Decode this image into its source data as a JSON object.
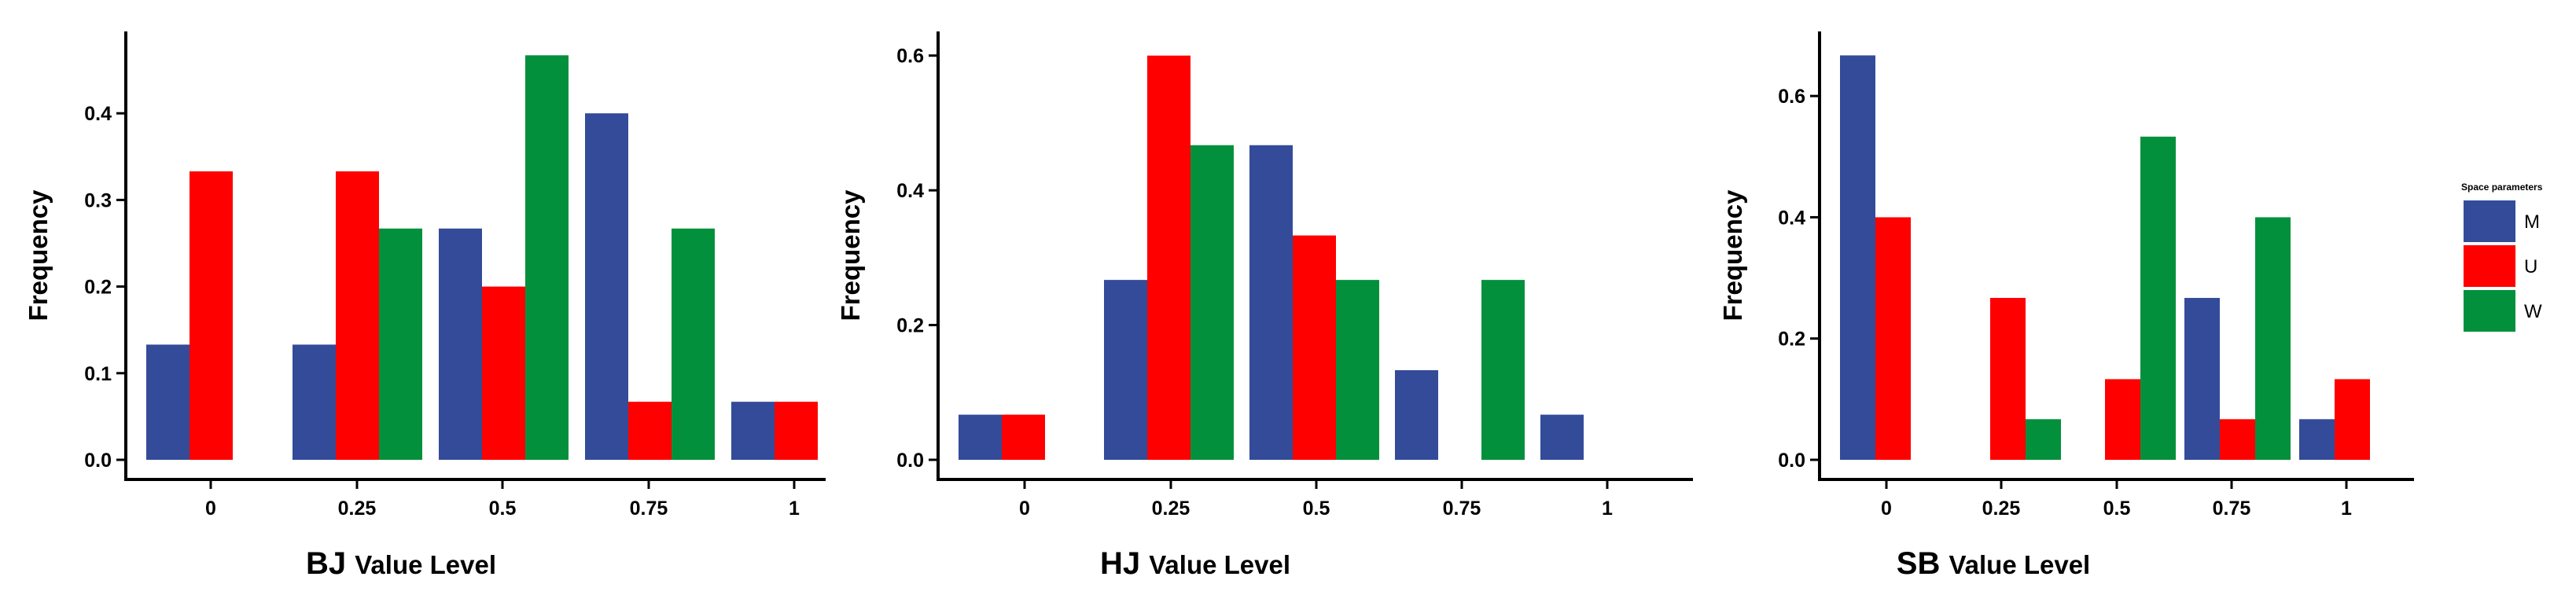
{
  "colors": {
    "M": "#334b99",
    "U": "#fe0000",
    "W": "#02903c"
  },
  "legend": {
    "title": "Space parameters",
    "items": [
      {
        "key": "M",
        "label": "M"
      },
      {
        "key": "U",
        "label": "U"
      },
      {
        "key": "W",
        "label": "W"
      }
    ]
  },
  "chart_data": [
    {
      "type": "bar",
      "xlabel_prefix": "BJ",
      "xlabel_suffix": "Value Level",
      "ylabel": "Frequency",
      "categories": [
        "0",
        "0.25",
        "0.5",
        "0.75",
        "1"
      ],
      "ylim": [
        0,
        0.49
      ],
      "yticks": [
        0.0,
        0.1,
        0.2,
        0.3,
        0.4
      ],
      "series": [
        {
          "name": "M",
          "values": [
            0.133,
            0.133,
            0.267,
            0.4,
            0.067
          ]
        },
        {
          "name": "U",
          "values": [
            0.333,
            0.333,
            0.2,
            0.067,
            0.067
          ]
        },
        {
          "name": "W",
          "values": [
            0,
            0.267,
            0.467,
            0.267,
            0
          ]
        }
      ]
    },
    {
      "type": "bar",
      "xlabel_prefix": "HJ",
      "xlabel_suffix": "Value Level",
      "ylabel": "Frequency",
      "categories": [
        "0",
        "0.25",
        "0.5",
        "0.75",
        "1"
      ],
      "ylim": [
        0,
        0.63
      ],
      "yticks": [
        0.0,
        0.2,
        0.4,
        0.6
      ],
      "series": [
        {
          "name": "M",
          "values": [
            0.067,
            0.267,
            0.467,
            0.133,
            0.067
          ]
        },
        {
          "name": "U",
          "values": [
            0.067,
            0.6,
            0.333,
            0,
            0
          ]
        },
        {
          "name": "W",
          "values": [
            0,
            0.467,
            0.267,
            0.267,
            0
          ]
        }
      ]
    },
    {
      "type": "bar",
      "xlabel_prefix": "SB",
      "xlabel_suffix": "Value Level",
      "ylabel": "Frequency",
      "categories": [
        "0",
        "0.25",
        "0.5",
        "0.75",
        "1"
      ],
      "ylim": [
        0,
        0.7
      ],
      "yticks": [
        0.0,
        0.2,
        0.4,
        0.6
      ],
      "series": [
        {
          "name": "M",
          "values": [
            0.667,
            0,
            0,
            0.267,
            0.067
          ]
        },
        {
          "name": "U",
          "values": [
            0.4,
            0.267,
            0.133,
            0.067,
            0.133
          ]
        },
        {
          "name": "W",
          "values": [
            0,
            0.067,
            0.533,
            0.4,
            0
          ]
        }
      ]
    }
  ]
}
